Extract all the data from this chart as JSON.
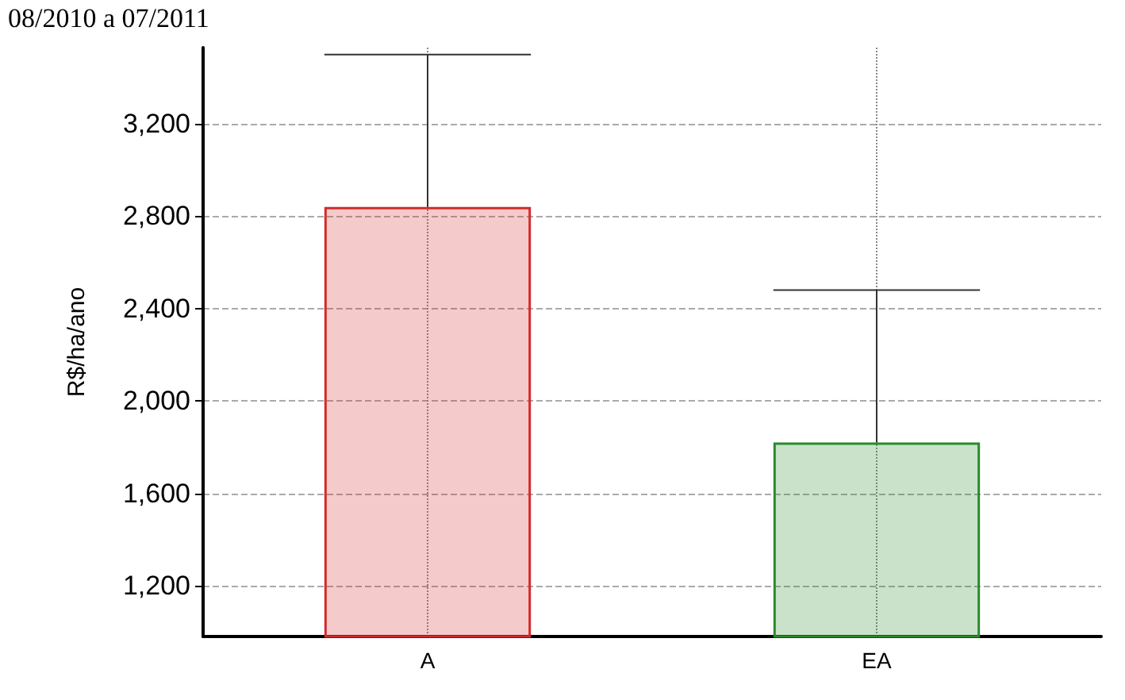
{
  "chart_data": {
    "type": "bar",
    "title": "08/2010 a 07/2011",
    "ylabel": "R$/ha/ano",
    "categories": [
      "A",
      "EA"
    ],
    "values": [
      2840,
      1820
    ],
    "colors": [
      "#d42a2a",
      "#2a8a2a"
    ],
    "errors": [
      [
        2840,
        3500
      ],
      [
        1820,
        2480
      ]
    ],
    "ylim": [
      980,
      3530
    ],
    "yticks": [
      {
        "value": 1200,
        "label": "1,200"
      },
      {
        "value": 1600,
        "label": "1,600"
      },
      {
        "value": 2000,
        "label": "2,000"
      },
      {
        "value": 2400,
        "label": "2,400"
      },
      {
        "value": 2800,
        "label": "2,800"
      },
      {
        "value": 3200,
        "label": "3,200"
      }
    ],
    "grid": true
  }
}
